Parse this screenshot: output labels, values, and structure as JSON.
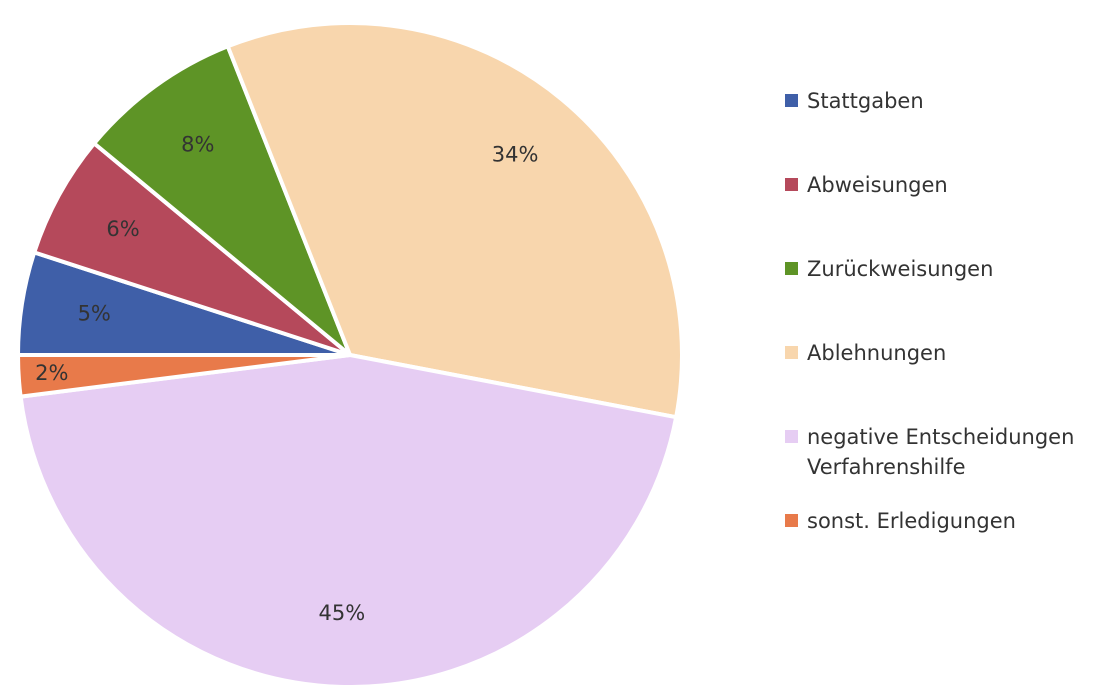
{
  "chart_data": {
    "type": "pie",
    "categories": [
      "Stattgaben",
      "Abweisungen",
      "Zurückweisungen",
      "Ablehnungen",
      "negative Entscheidungen Verfahrenshilfe",
      "sonst. Erledigungen"
    ],
    "values": [
      5,
      6,
      8,
      34,
      45,
      2
    ],
    "value_labels": [
      "5%",
      "6%",
      "8%",
      "34%",
      "45%",
      "2%"
    ],
    "colors": [
      "#3f5fa8",
      "#b5495b",
      "#5e9426",
      "#f8d6ad",
      "#e6cdf3",
      "#e87a4a"
    ],
    "legend": "right"
  }
}
